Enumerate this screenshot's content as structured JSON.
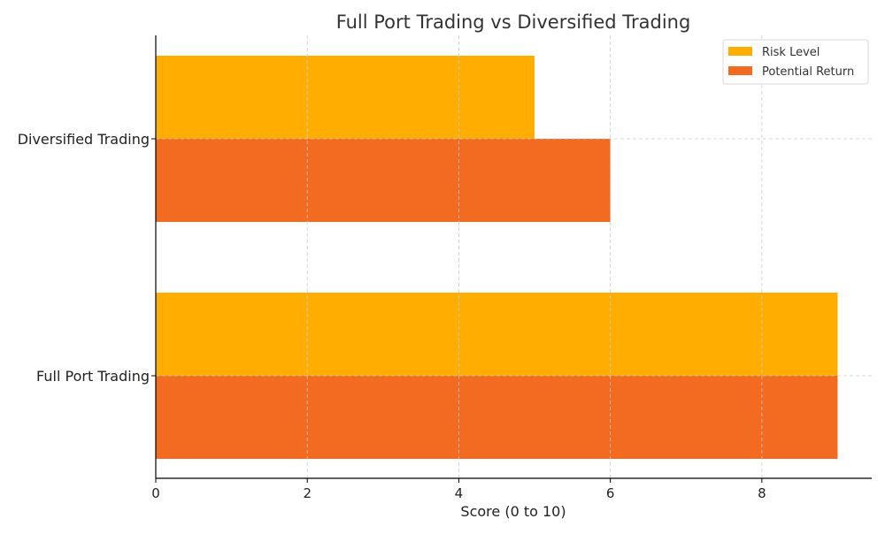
{
  "chart_data": {
    "type": "bar",
    "orientation": "horizontal",
    "title": "Full Port Trading vs Diversified Trading",
    "xlabel": "Score (0 to 10)",
    "ylabel": "",
    "categories": [
      "Full Port Trading",
      "Diversified Trading"
    ],
    "series": [
      {
        "name": "Risk Level",
        "values": [
          9,
          5
        ],
        "color": "#FFAE00"
      },
      {
        "name": "Potential Return",
        "values": [
          9,
          6
        ],
        "color": "#F26B21"
      }
    ],
    "xlim": [
      0,
      9.45
    ],
    "xticks": [
      0,
      2,
      4,
      6,
      8
    ],
    "grid": true,
    "legend_position": "top-right"
  }
}
